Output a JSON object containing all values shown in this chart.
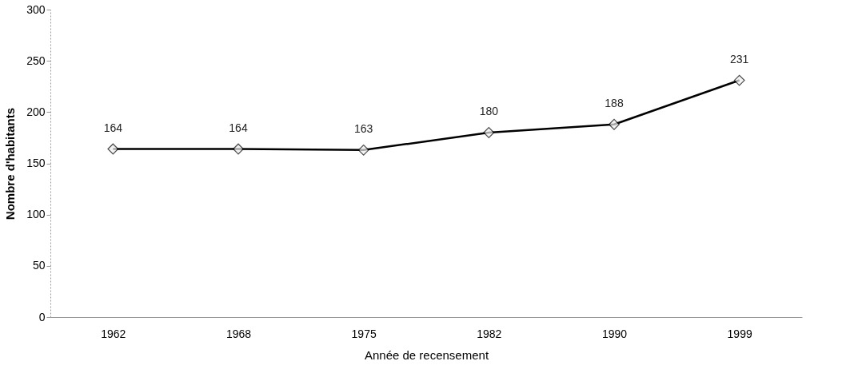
{
  "chart_data": {
    "type": "line",
    "xlabel": "Année de recensement",
    "ylabel": "Nombre d'habitants",
    "categories": [
      "1962",
      "1968",
      "1975",
      "1982",
      "1990",
      "1999"
    ],
    "series": [
      {
        "color": "#000000",
        "values": [
          164,
          164,
          163,
          180,
          188,
          231
        ]
      }
    ],
    "ylim": [
      0,
      300
    ],
    "yticks": [
      0,
      50,
      100,
      150,
      200,
      250,
      300
    ],
    "data_labels": true,
    "marker": "diamond",
    "line_style": "solid",
    "grid": false,
    "legend": false
  }
}
